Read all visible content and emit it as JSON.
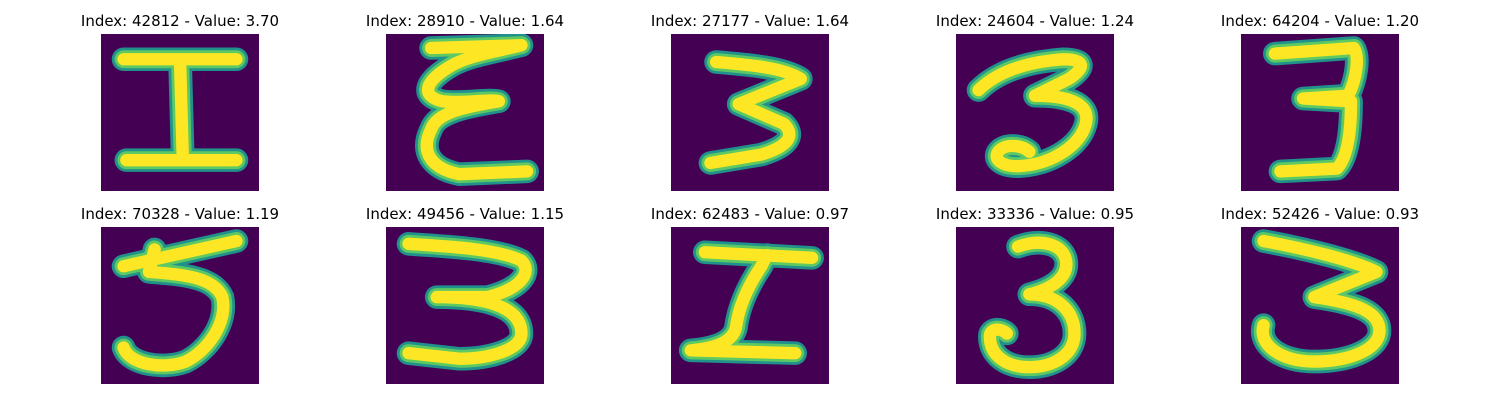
{
  "figure": {
    "background_color": "#ffffff",
    "image_background_color": "#440154",
    "stroke_outer_color": "#21918c",
    "stroke_mid_color": "#5ec962",
    "stroke_core_color": "#fde725"
  },
  "panels": [
    {
      "title": "Index: 42812 - Value: 3.70",
      "glyph": "I"
    },
    {
      "title": "Index: 28910 - Value: 1.64",
      "glyph": "E"
    },
    {
      "title": "Index: 27177 - Value: 1.64",
      "glyph": "3"
    },
    {
      "title": "Index: 24604 - Value: 1.24",
      "glyph": "3"
    },
    {
      "title": "Index: 64204 - Value: 1.20",
      "glyph": "3"
    },
    {
      "title": "Index: 70328 - Value: 1.19",
      "glyph": "5"
    },
    {
      "title": "Index: 49456 - Value: 1.15",
      "glyph": "3"
    },
    {
      "title": "Index: 62483 - Value: 0.97",
      "glyph": "Σ"
    },
    {
      "title": "Index: 33336 - Value: 0.95",
      "glyph": "3"
    },
    {
      "title": "Index: 52426 - Value: 0.93",
      "glyph": "3"
    }
  ]
}
